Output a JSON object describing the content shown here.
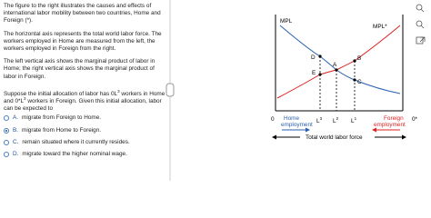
{
  "question": {
    "paragraphs": [
      "The figure to the right illustrates the causes and effects of international labor mobility between two countries, Home and Foreign (*).",
      "The horizontal axis represents the total world labor force. The workers employed in Home are measured from the left, the workers employed in Foreign from the right.",
      "The left vertical axis shows the marginal product of labor in Home; the right vertical axis shows the marginal product of labor in Foreign."
    ],
    "prompt": [
      "Suppose the initial allocation of labor has 0L",
      "3",
      " workers in Home and 0*L",
      "3",
      " workers in Foreign. Given this initial allocation, labor can be expected to"
    ],
    "options": [
      {
        "letter": "A.",
        "text": "migrate from Foreign to Home."
      },
      {
        "letter": "B.",
        "text": "migrate from Home to Foreign."
      },
      {
        "letter": "C.",
        "text": "remain situated where it currently resides."
      },
      {
        "letter": "D.",
        "text": "migrate toward the higher nominal wage."
      }
    ]
  },
  "figure": {
    "mpl": "MPL",
    "mpl_star": "MPL*",
    "points": [
      "D",
      "B",
      "A",
      "E",
      "C"
    ],
    "origin": "0",
    "origin_star": "0*",
    "home": [
      "Home",
      "employment"
    ],
    "foreign": [
      "Foreign",
      "employment"
    ],
    "l3": [
      "L",
      "3"
    ],
    "l2": [
      "L",
      "2"
    ],
    "l1": [
      "L",
      "1"
    ],
    "total": "Total world labor force"
  }
}
